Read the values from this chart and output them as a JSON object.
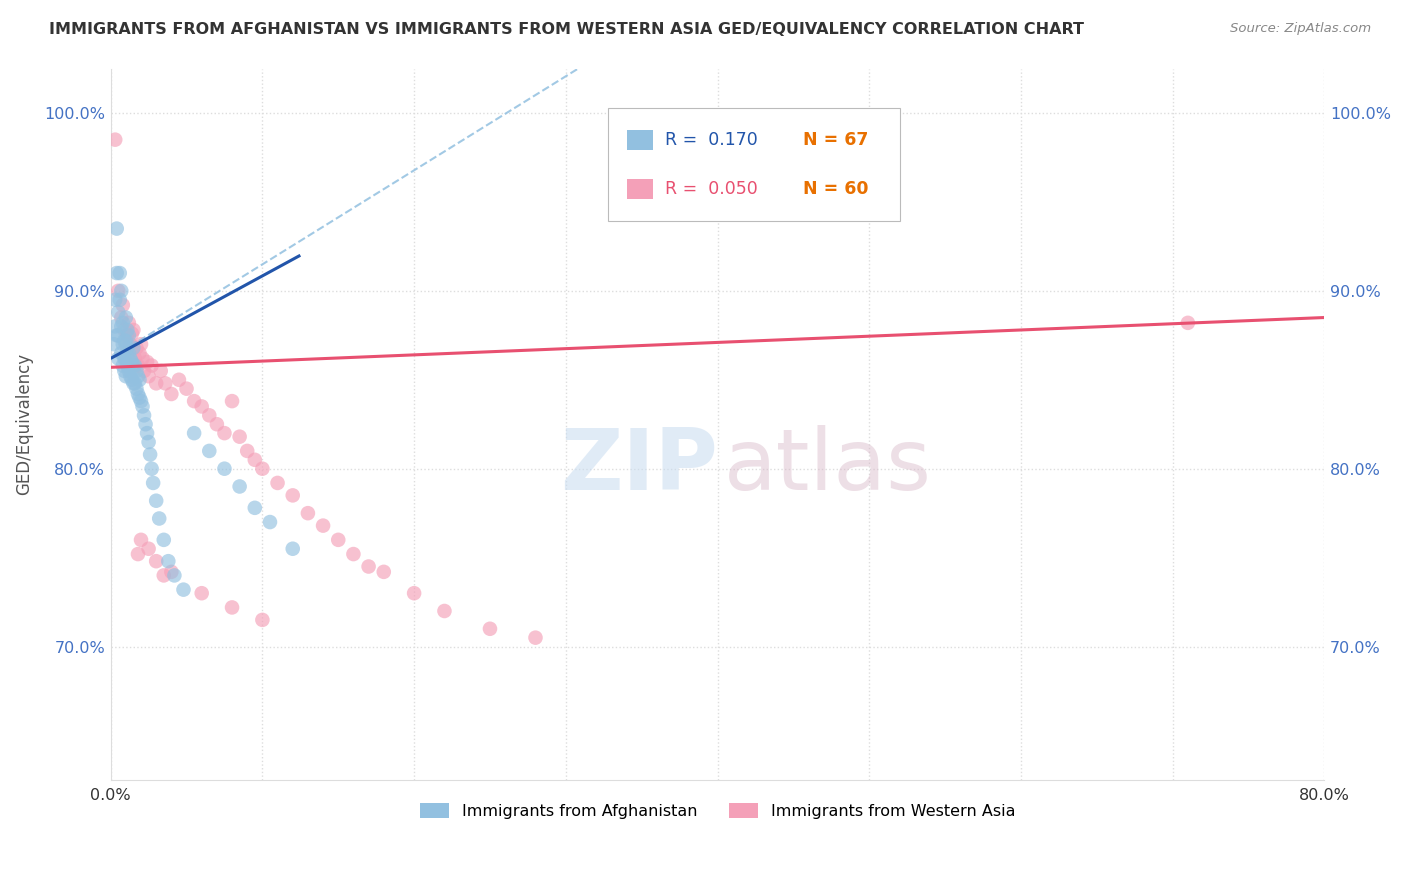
{
  "title": "IMMIGRANTS FROM AFGHANISTAN VS IMMIGRANTS FROM WESTERN ASIA GED/EQUIVALENCY CORRELATION CHART",
  "source": "Source: ZipAtlas.com",
  "ylabel": "GED/Equivalency",
  "xlim": [
    0.0,
    0.8
  ],
  "ylim": [
    0.625,
    1.025
  ],
  "yticks": [
    0.7,
    0.8,
    0.9,
    1.0
  ],
  "ytick_labels": [
    "70.0%",
    "80.0%",
    "90.0%",
    "100.0%"
  ],
  "xtick_pos": [
    0.0,
    0.1,
    0.2,
    0.3,
    0.4,
    0.5,
    0.6,
    0.7,
    0.8
  ],
  "xtick_labels": [
    "0.0%",
    "",
    "",
    "",
    "",
    "",
    "",
    "",
    "80.0%"
  ],
  "legend_r_blue": "R =  0.170",
  "legend_n_blue": "N = 67",
  "legend_r_pink": "R =  0.050",
  "legend_n_pink": "N = 60",
  "blue_scatter_color": "#92C0E0",
  "pink_scatter_color": "#F4A0B8",
  "blue_line_color": "#2255AA",
  "pink_line_color": "#E85070",
  "n_color": "#E87000",
  "watermark_zip_color": "#C8DCF0",
  "watermark_atlas_color": "#D8B8C8",
  "background": "#FFFFFF",
  "grid_color": "#DDDDDD",
  "title_color": "#333333",
  "ylabel_color": "#555555",
  "ytick_color": "#4472C4",
  "source_color": "#888888",
  "blue_scatter_x": [
    0.002,
    0.003,
    0.003,
    0.004,
    0.004,
    0.004,
    0.005,
    0.005,
    0.005,
    0.006,
    0.006,
    0.007,
    0.007,
    0.007,
    0.008,
    0.008,
    0.008,
    0.009,
    0.009,
    0.009,
    0.01,
    0.01,
    0.01,
    0.01,
    0.011,
    0.011,
    0.011,
    0.012,
    0.012,
    0.012,
    0.013,
    0.013,
    0.014,
    0.014,
    0.015,
    0.015,
    0.015,
    0.016,
    0.016,
    0.017,
    0.017,
    0.018,
    0.018,
    0.019,
    0.019,
    0.02,
    0.021,
    0.022,
    0.023,
    0.024,
    0.025,
    0.026,
    0.027,
    0.028,
    0.03,
    0.032,
    0.035,
    0.038,
    0.042,
    0.048,
    0.055,
    0.065,
    0.075,
    0.085,
    0.095,
    0.105,
    0.12
  ],
  "blue_scatter_y": [
    0.87,
    0.88,
    0.895,
    0.875,
    0.91,
    0.935,
    0.862,
    0.875,
    0.888,
    0.895,
    0.91,
    0.865,
    0.88,
    0.9,
    0.858,
    0.87,
    0.882,
    0.862,
    0.872,
    0.855,
    0.852,
    0.862,
    0.872,
    0.885,
    0.858,
    0.868,
    0.878,
    0.855,
    0.865,
    0.875,
    0.852,
    0.862,
    0.85,
    0.86,
    0.848,
    0.858,
    0.868,
    0.848,
    0.858,
    0.845,
    0.855,
    0.842,
    0.852,
    0.84,
    0.85,
    0.838,
    0.835,
    0.83,
    0.825,
    0.82,
    0.815,
    0.808,
    0.8,
    0.792,
    0.782,
    0.772,
    0.76,
    0.748,
    0.74,
    0.732,
    0.82,
    0.81,
    0.8,
    0.79,
    0.778,
    0.77,
    0.755
  ],
  "pink_scatter_x": [
    0.003,
    0.005,
    0.007,
    0.008,
    0.009,
    0.01,
    0.011,
    0.012,
    0.013,
    0.014,
    0.015,
    0.015,
    0.016,
    0.017,
    0.018,
    0.019,
    0.02,
    0.021,
    0.022,
    0.024,
    0.025,
    0.027,
    0.03,
    0.033,
    0.036,
    0.04,
    0.045,
    0.05,
    0.055,
    0.06,
    0.065,
    0.07,
    0.075,
    0.08,
    0.085,
    0.09,
    0.095,
    0.1,
    0.11,
    0.12,
    0.13,
    0.14,
    0.15,
    0.16,
    0.17,
    0.18,
    0.2,
    0.22,
    0.25,
    0.28,
    0.02,
    0.025,
    0.03,
    0.035,
    0.018,
    0.04,
    0.06,
    0.08,
    0.1,
    0.71
  ],
  "pink_scatter_y": [
    0.985,
    0.9,
    0.885,
    0.892,
    0.878,
    0.87,
    0.875,
    0.882,
    0.87,
    0.876,
    0.868,
    0.878,
    0.862,
    0.868,
    0.858,
    0.865,
    0.87,
    0.862,
    0.855,
    0.86,
    0.852,
    0.858,
    0.848,
    0.855,
    0.848,
    0.842,
    0.85,
    0.845,
    0.838,
    0.835,
    0.83,
    0.825,
    0.82,
    0.838,
    0.818,
    0.81,
    0.805,
    0.8,
    0.792,
    0.785,
    0.775,
    0.768,
    0.76,
    0.752,
    0.745,
    0.742,
    0.73,
    0.72,
    0.71,
    0.705,
    0.76,
    0.755,
    0.748,
    0.74,
    0.752,
    0.742,
    0.73,
    0.722,
    0.715,
    0.882
  ],
  "blue_solid_line": [
    [
      0.0,
      0.125
    ],
    [
      0.862,
      0.92
    ]
  ],
  "blue_dash_line": [
    [
      0.0,
      0.45
    ],
    [
      0.862,
      1.1
    ]
  ],
  "pink_solid_line": [
    [
      0.0,
      0.8
    ],
    [
      0.857,
      0.885
    ]
  ]
}
